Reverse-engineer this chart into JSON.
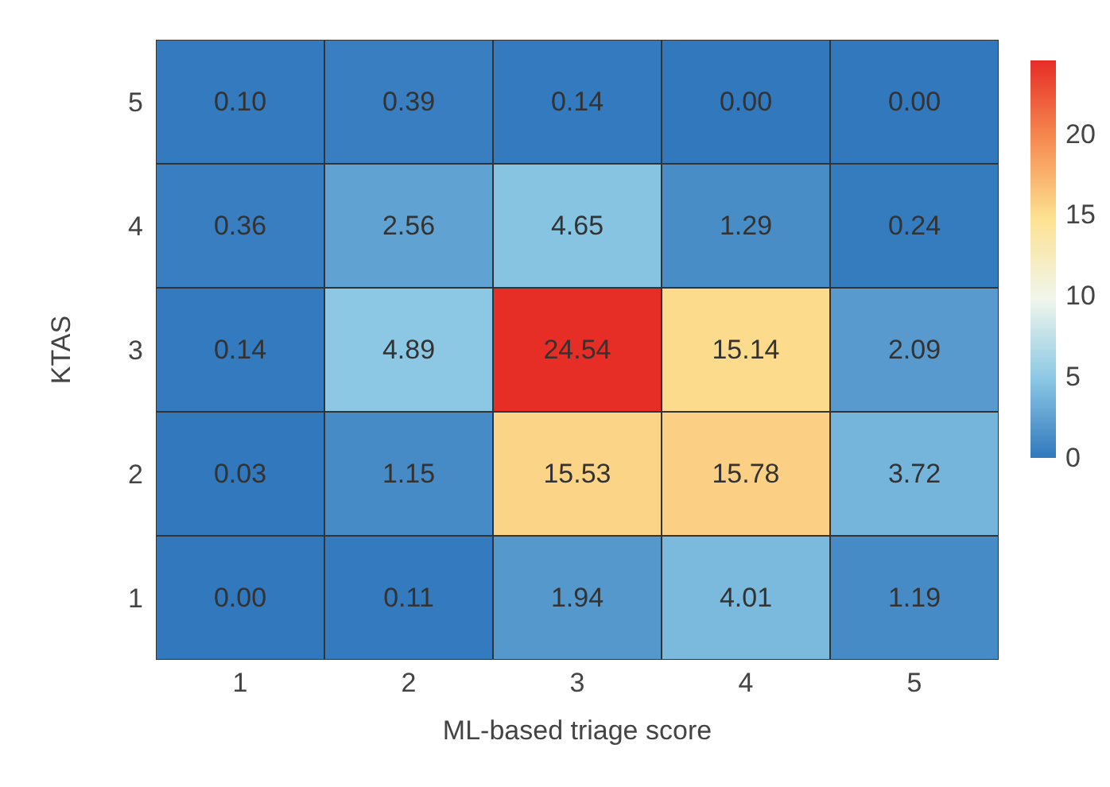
{
  "chart_data": {
    "type": "heatmap",
    "xlabel": "ML-based triage score",
    "ylabel": "KTAS",
    "categories": [
      "1",
      "2",
      "3",
      "4",
      "5"
    ],
    "y_categories": [
      "5",
      "4",
      "3",
      "2",
      "1"
    ],
    "cells": [
      [
        0.1,
        0.39,
        0.14,
        0.0,
        0.0
      ],
      [
        0.36,
        2.56,
        4.65,
        1.29,
        0.24
      ],
      [
        0.14,
        4.89,
        24.54,
        15.14,
        2.09
      ],
      [
        0.03,
        1.15,
        15.53,
        15.78,
        3.72
      ],
      [
        0.0,
        0.11,
        1.94,
        4.01,
        1.19
      ]
    ],
    "cell_labels": [
      [
        "0.10",
        "0.39",
        "0.14",
        "0.00",
        "0.00"
      ],
      [
        "0.36",
        "2.56",
        "4.65",
        "1.29",
        "0.24"
      ],
      [
        "0.14",
        "4.89",
        "24.54",
        "15.14",
        "2.09"
      ],
      [
        "0.03",
        "1.15",
        "15.53",
        "15.78",
        "3.72"
      ],
      [
        "0.00",
        "0.11",
        "1.94",
        "4.01",
        "1.19"
      ]
    ],
    "data_labels": true,
    "clim": [
      0,
      24.54
    ],
    "cticks": [
      0,
      5,
      10,
      15,
      20
    ]
  }
}
